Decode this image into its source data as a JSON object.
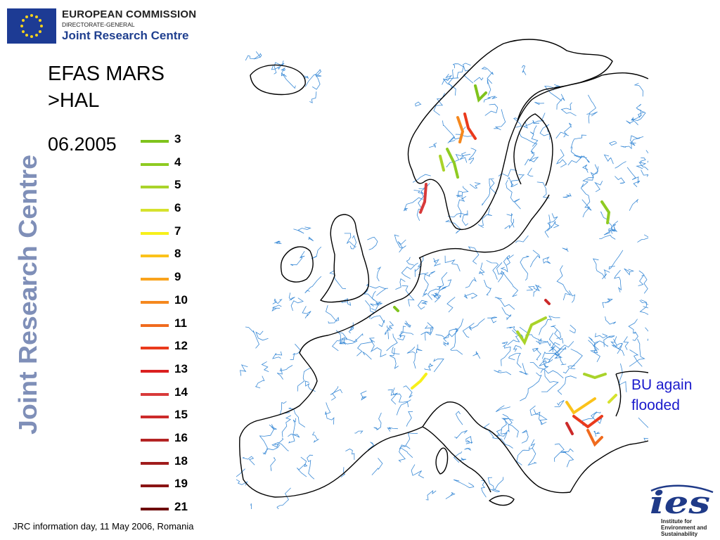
{
  "header": {
    "org_line1": "EUROPEAN COMMISSION",
    "org_line2": "DIRECTORATE-GENERAL",
    "org_line3": "Joint Research Centre"
  },
  "side_brand": "Joint Research Centre",
  "title": {
    "line1": "EFAS MARS",
    "line2": ">HAL"
  },
  "date": "06.2005",
  "legend": {
    "items": [
      {
        "label": "3",
        "color": "#7fc31c"
      },
      {
        "label": "4",
        "color": "#8fcb22"
      },
      {
        "label": "5",
        "color": "#a9d32a"
      },
      {
        "label": "6",
        "color": "#d6e22e"
      },
      {
        "label": "7",
        "color": "#f7f01a"
      },
      {
        "label": "8",
        "color": "#fbc21a"
      },
      {
        "label": "9",
        "color": "#f9a31c"
      },
      {
        "label": "10",
        "color": "#f5881e"
      },
      {
        "label": "11",
        "color": "#f06b1e"
      },
      {
        "label": "12",
        "color": "#ea3a1c"
      },
      {
        "label": "13",
        "color": "#db2020"
      },
      {
        "label": "14",
        "color": "#d83a3a"
      },
      {
        "label": "15",
        "color": "#cc2a2a"
      },
      {
        "label": "16",
        "color": "#b42424"
      },
      {
        "label": "18",
        "color": "#a01c1c"
      },
      {
        "label": "19",
        "color": "#8a1414"
      },
      {
        "label": "21",
        "color": "#6e0c0c"
      }
    ]
  },
  "annotation": {
    "line1": "BU again",
    "line2": "flooded"
  },
  "footer": "JRC information day, 11 May 2006, Romania",
  "ies_logo": {
    "mark": "ies",
    "line1": "Institute for",
    "line2": "Environment and",
    "line3": "Sustainability"
  },
  "map": {
    "river_color": "#3a8ad6",
    "coast_color": "#000000"
  }
}
